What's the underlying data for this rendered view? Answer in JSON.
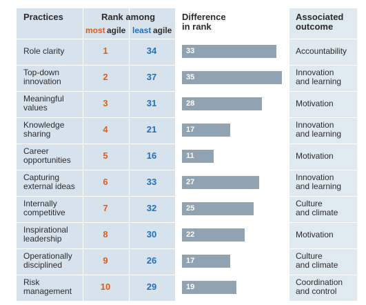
{
  "headers": {
    "practices": "Practices",
    "rank_among": "Rank among",
    "most": "most",
    "agile1": "agile",
    "least": "least",
    "agile2": "agile",
    "difference_l1": "Difference",
    "difference_l2": "in rank",
    "outcome_l1": "Associated",
    "outcome_l2": "outcome"
  },
  "colors": {
    "practice_bg": "#d7e3ec",
    "rank_bg": "#d7e3ec",
    "diff_bg": "#ffffff",
    "outcome_bg": "#dfe9f0",
    "bar": "#8fa3b3",
    "most": "#e05a1c",
    "least": "#1f6fbf"
  },
  "chart_data": {
    "type": "table",
    "bar_max": 35,
    "rows": [
      {
        "practice_l1": "Role clarity",
        "practice_l2": "",
        "most": "1",
        "least": "34",
        "difference": 33,
        "outcome_l1": "Accountability",
        "outcome_l2": ""
      },
      {
        "practice_l1": "Top-down",
        "practice_l2": "innovation",
        "most": "2",
        "least": "37",
        "difference": 35,
        "outcome_l1": "Innovation",
        "outcome_l2": "and learning"
      },
      {
        "practice_l1": "Meaningful",
        "practice_l2": "values",
        "most": "3",
        "least": "31",
        "difference": 28,
        "outcome_l1": "Motivation",
        "outcome_l2": ""
      },
      {
        "practice_l1": "Knowledge",
        "practice_l2": "sharing",
        "most": "4",
        "least": "21",
        "difference": 17,
        "outcome_l1": "Innovation",
        "outcome_l2": "and learning"
      },
      {
        "practice_l1": "Career",
        "practice_l2": "opportunities",
        "most": "5",
        "least": "16",
        "difference": 11,
        "outcome_l1": "Motivation",
        "outcome_l2": ""
      },
      {
        "practice_l1": "Capturing",
        "practice_l2": "external ideas",
        "most": "6",
        "least": "33",
        "difference": 27,
        "outcome_l1": "Innovation",
        "outcome_l2": "and learning"
      },
      {
        "practice_l1": "Internally",
        "practice_l2": "competitive",
        "most": "7",
        "least": "32",
        "difference": 25,
        "outcome_l1": "Culture",
        "outcome_l2": "and climate"
      },
      {
        "practice_l1": "Inspirational",
        "practice_l2": "leadership",
        "most": "8",
        "least": "30",
        "difference": 22,
        "outcome_l1": "Motivation",
        "outcome_l2": ""
      },
      {
        "practice_l1": "Operationally",
        "practice_l2": "disciplined",
        "most": "9",
        "least": "26",
        "difference": 17,
        "outcome_l1": "Culture",
        "outcome_l2": "and climate"
      },
      {
        "practice_l1": "Risk",
        "practice_l2": "management",
        "most": "10",
        "least": "29",
        "difference": 19,
        "outcome_l1": "Coordination",
        "outcome_l2": "and control"
      }
    ]
  }
}
